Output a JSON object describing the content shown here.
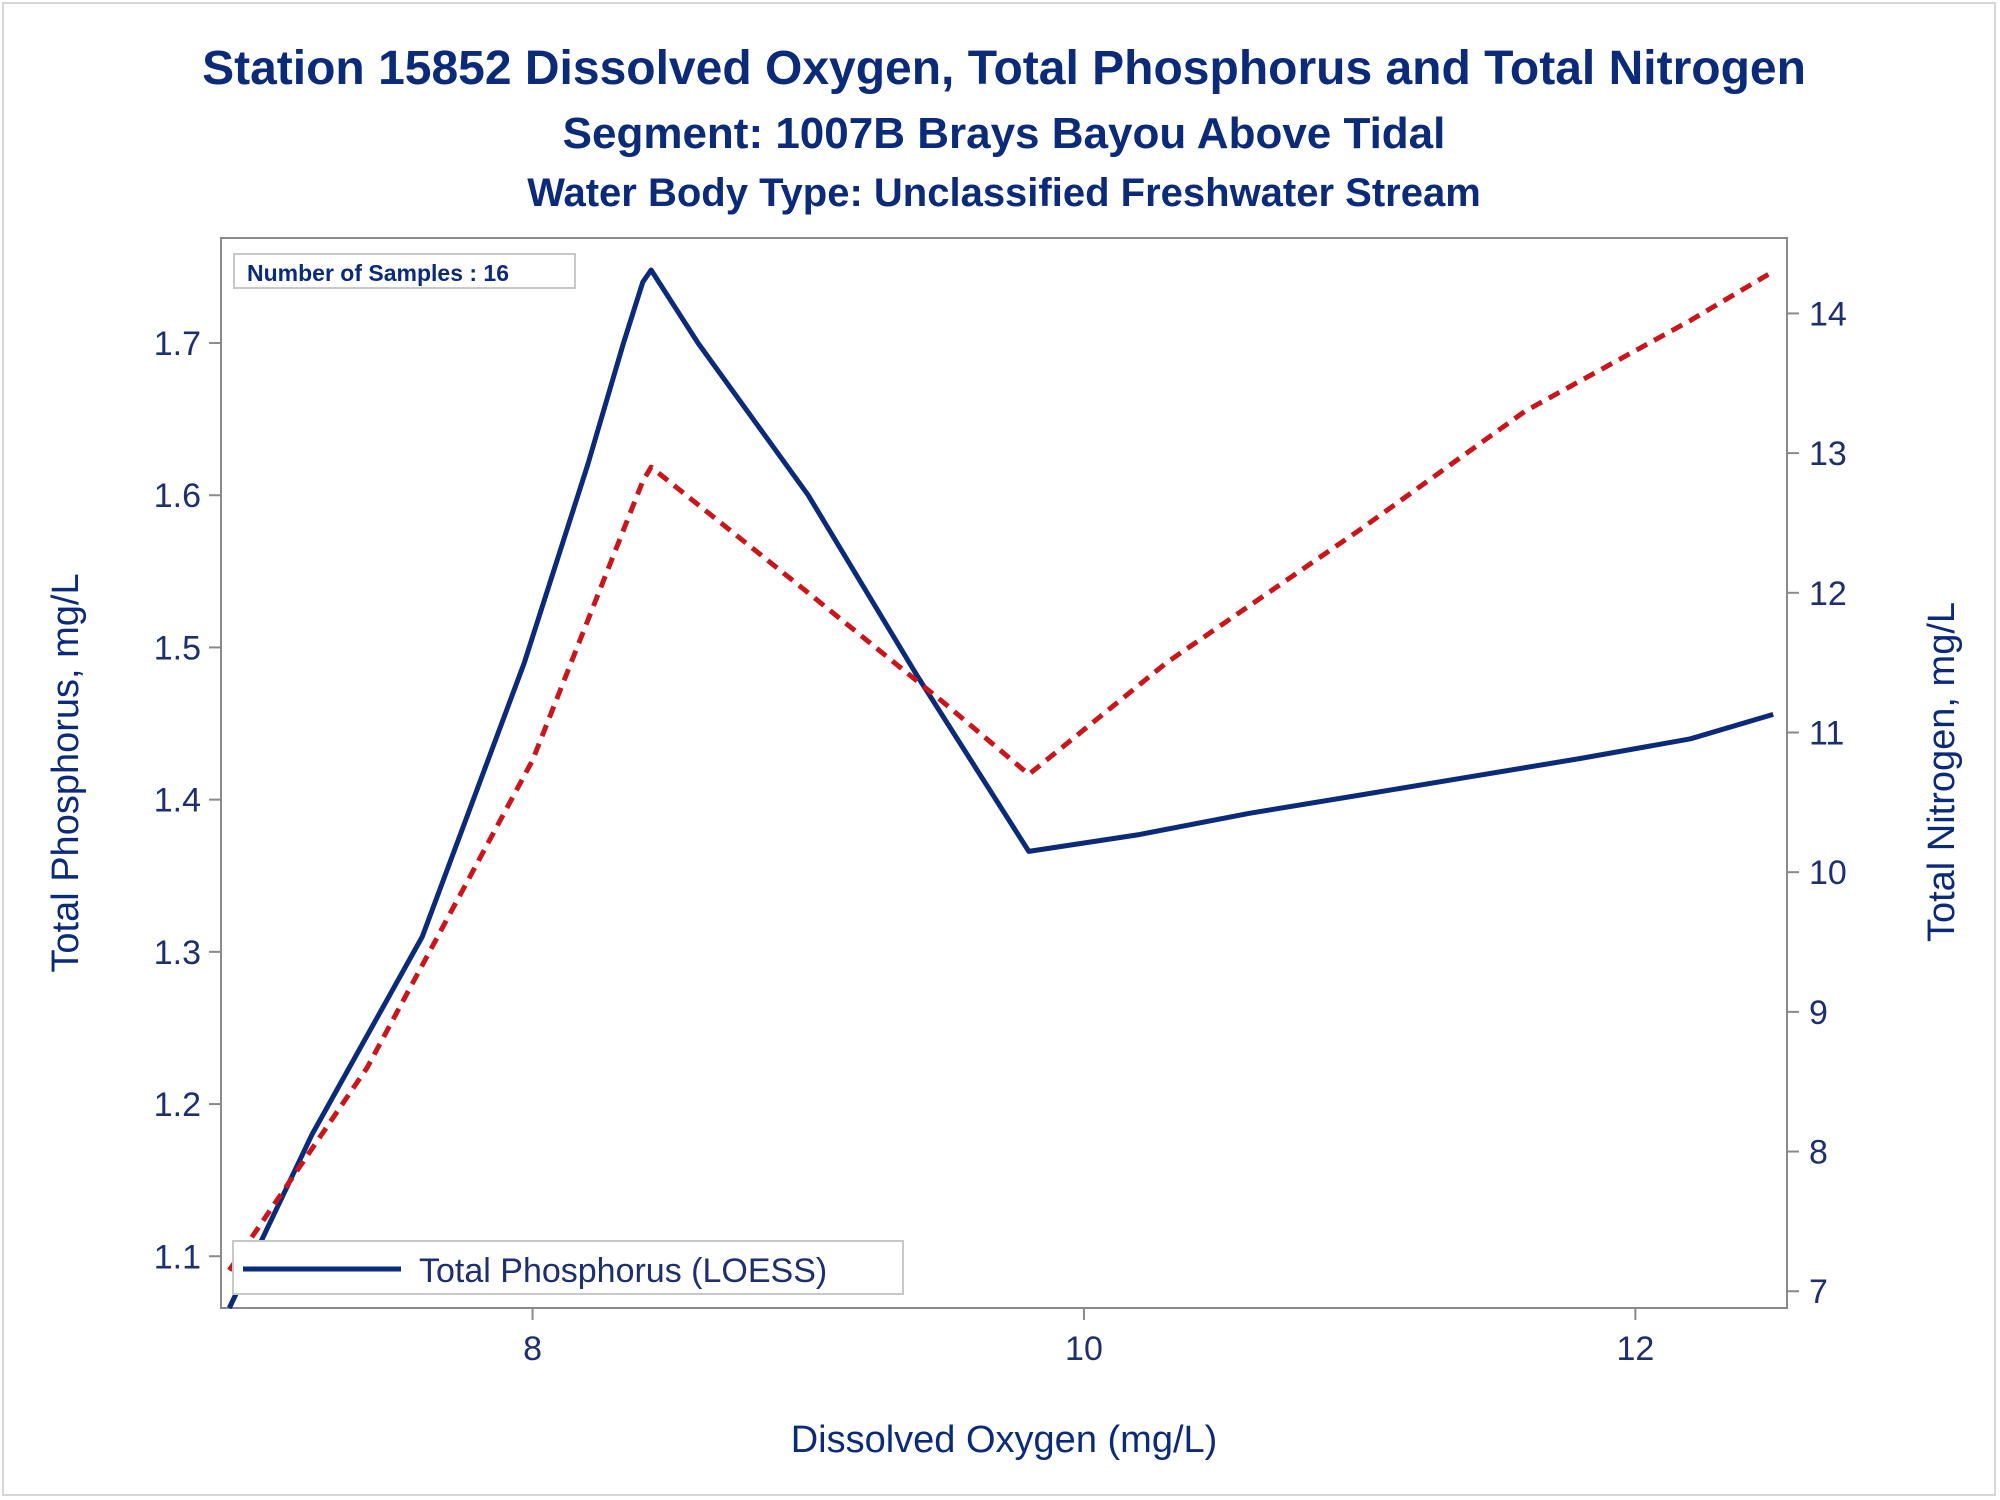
{
  "titles": {
    "line1": "Station 15852  Dissolved Oxygen, Total Phosphorus and Total Nitrogen",
    "line2": "Segment: 1007B  Brays Bayou Above Tidal",
    "line3": "Water Body Type: Unclassified Freshwater Stream"
  },
  "inset_text": "Number of Samples : 16",
  "legend": {
    "placement": "bottom-left",
    "entries": [
      "Total Phosphorus (LOESS)"
    ]
  },
  "colors": {
    "phosphorus": "#0b2a78",
    "nitrogen": "#c8161d",
    "axis": "#8a8a8a",
    "text": "#0b2a78"
  },
  "chart_data": {
    "type": "line",
    "xlabel": "Dissolved Oxygen (mg/L)",
    "ylabel": "Total Phosphorus, mg/L",
    "y2label": "Total Nitrogen, mg/L",
    "xlim": [
      6.87,
      12.55
    ],
    "ylim": [
      1.066,
      1.769
    ],
    "y2lim": [
      6.88,
      14.54
    ],
    "x_ticks": [
      8,
      10,
      12
    ],
    "y_ticks": [
      1.1,
      1.2,
      1.3,
      1.4,
      1.5,
      1.6,
      1.7
    ],
    "y2_ticks": [
      7,
      8,
      9,
      10,
      11,
      12,
      13,
      14
    ],
    "grid": false,
    "series": [
      {
        "name": "Total Phosphorus (LOESS)",
        "axis": "left",
        "style": "solid",
        "x": [
          6.9,
          7.2,
          7.6,
          7.97,
          8.2,
          8.33,
          8.4,
          8.43,
          8.6,
          9.0,
          9.4,
          9.8,
          10.2,
          10.6,
          11.0,
          11.4,
          11.8,
          12.2,
          12.5
        ],
        "y": [
          1.066,
          1.18,
          1.31,
          1.49,
          1.62,
          1.7,
          1.74,
          1.748,
          1.7,
          1.6,
          1.48,
          1.366,
          1.377,
          1.391,
          1.403,
          1.415,
          1.427,
          1.44,
          1.456
        ]
      },
      {
        "axis": "right",
        "style": "dashed",
        "x": [
          6.9,
          7.4,
          8.0,
          8.4,
          8.43,
          9.0,
          9.5,
          9.8,
          10.3,
          11.0,
          11.6,
          12.2,
          12.5
        ],
        "y": [
          7.15,
          8.6,
          10.8,
          12.8,
          12.9,
          12.0,
          11.2,
          10.7,
          11.5,
          12.45,
          13.3,
          13.95,
          14.3
        ]
      }
    ]
  }
}
